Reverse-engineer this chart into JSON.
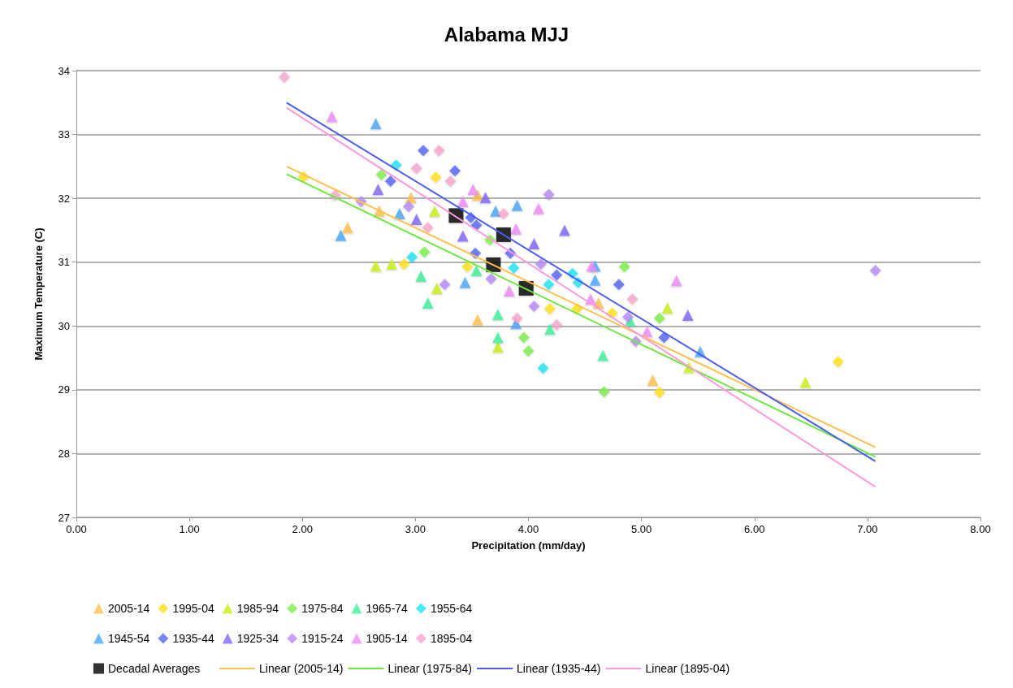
{
  "chart_data": {
    "type": "scatter",
    "title": "Alabama MJJ",
    "xlabel": "Precipitation (mm/day)",
    "ylabel": "Maximum Temperature (C)",
    "xlim": [
      0,
      8
    ],
    "xticks": [
      {
        "value": 0,
        "label": "0.00"
      },
      {
        "value": 1,
        "label": "1.00"
      },
      {
        "value": 2,
        "label": "2.00"
      },
      {
        "value": 3,
        "label": "3.00"
      },
      {
        "value": 4,
        "label": "4.00"
      },
      {
        "value": 5,
        "label": "5.00"
      },
      {
        "value": 6,
        "label": "6.00"
      },
      {
        "value": 7,
        "label": "7.00"
      },
      {
        "value": 8,
        "label": "8.00"
      }
    ],
    "ylim": [
      27,
      34
    ],
    "yticks": [
      27,
      28,
      29,
      30,
      31,
      32,
      33,
      34
    ],
    "grid": "y",
    "legend": "bottom",
    "series": [
      {
        "name": "2005-14",
        "color": "#ffc04f",
        "marker": "triangle",
        "x": [
          2.4,
          2.68,
          2.96,
          3.55,
          3.55,
          4.62,
          5.1
        ],
        "values": [
          31.54,
          31.8,
          32.01,
          32.05,
          30.1,
          30.36,
          29.15
        ]
      },
      {
        "name": "1995-04",
        "color": "#ffe11a",
        "marker": "diamond",
        "x": [
          2.01,
          2.9,
          3.18,
          3.46,
          4.19,
          4.43,
          4.74,
          5.16,
          6.74
        ],
        "values": [
          32.34,
          30.97,
          32.33,
          30.93,
          30.27,
          30.27,
          30.2,
          28.96,
          29.44
        ]
      },
      {
        "name": "1985-94",
        "color": "#c5f018",
        "marker": "triangle",
        "x": [
          2.65,
          2.79,
          3.17,
          3.19,
          3.73,
          5.23,
          5.42,
          6.45
        ],
        "values": [
          30.94,
          30.97,
          31.8,
          30.59,
          29.67,
          30.28,
          29.35,
          29.12
        ]
      },
      {
        "name": "1975-84",
        "color": "#7df04a",
        "marker": "diamond",
        "x": [
          2.7,
          3.08,
          3.66,
          3.96,
          4.0,
          4.67,
          4.85,
          5.16
        ],
        "values": [
          32.37,
          31.16,
          31.35,
          29.82,
          29.61,
          28.97,
          30.93,
          30.12
        ]
      },
      {
        "name": "1965-74",
        "color": "#3ef09a",
        "marker": "triangle",
        "x": [
          3.05,
          3.11,
          3.54,
          3.73,
          3.73,
          4.19,
          4.66,
          4.9
        ],
        "values": [
          30.78,
          30.36,
          30.87,
          30.18,
          29.82,
          29.95,
          29.54,
          30.08
        ]
      },
      {
        "name": "1955-64",
        "color": "#1ee6f5",
        "marker": "diamond",
        "x": [
          2.83,
          2.97,
          3.87,
          4.13,
          4.18,
          4.39,
          4.44
        ],
        "values": [
          32.52,
          31.08,
          30.91,
          29.34,
          30.65,
          30.82,
          30.68
        ]
      },
      {
        "name": "1945-54",
        "color": "#4aa7f7",
        "marker": "triangle",
        "x": [
          2.34,
          2.65,
          2.86,
          3.44,
          3.71,
          3.89,
          3.9,
          4.59,
          4.59,
          5.52
        ],
        "values": [
          31.42,
          33.17,
          31.76,
          30.68,
          31.8,
          30.04,
          31.89,
          30.72,
          30.94,
          29.6
        ]
      },
      {
        "name": "1935-44",
        "color": "#5566f5",
        "marker": "diamond",
        "x": [
          2.78,
          3.07,
          3.35,
          3.49,
          3.53,
          3.54,
          3.84,
          4.25,
          4.8,
          5.2
        ],
        "values": [
          32.27,
          32.75,
          32.43,
          31.7,
          31.14,
          31.58,
          31.14,
          30.8,
          30.65,
          29.82
        ]
      },
      {
        "name": "1925-34",
        "color": "#8266f5",
        "marker": "triangle",
        "x": [
          2.67,
          3.01,
          3.42,
          3.62,
          4.05,
          4.32,
          5.41
        ],
        "values": [
          32.14,
          31.67,
          31.41,
          32.01,
          31.29,
          31.5,
          30.17
        ]
      },
      {
        "name": "1915-24",
        "color": "#b88bf7",
        "marker": "diamond",
        "x": [
          2.52,
          2.94,
          3.26,
          3.67,
          4.05,
          4.11,
          4.18,
          4.88,
          4.95,
          7.07
        ],
        "values": [
          31.95,
          31.87,
          30.65,
          30.74,
          30.31,
          30.97,
          32.06,
          30.14,
          29.76,
          30.87
        ]
      },
      {
        "name": "1905-14",
        "color": "#ee8bf5",
        "marker": "triangle",
        "x": [
          2.26,
          3.42,
          3.51,
          3.83,
          3.89,
          4.09,
          4.55,
          4.56,
          5.05,
          5.31
        ],
        "values": [
          33.28,
          31.95,
          32.14,
          30.55,
          31.52,
          31.84,
          30.42,
          30.94,
          29.91,
          30.71
        ]
      },
      {
        "name": "1895-04",
        "color": "#f9a6d0",
        "marker": "diamond",
        "x": [
          1.84,
          2.29,
          3.01,
          3.11,
          3.21,
          3.31,
          3.78,
          3.9,
          4.25,
          4.92
        ],
        "values": [
          33.9,
          32.05,
          32.47,
          31.54,
          32.75,
          32.27,
          31.76,
          30.12,
          30.02,
          30.42
        ]
      },
      {
        "name": "Decadal Averages",
        "color": "#000000",
        "marker": "square",
        "x": [
          3.36,
          3.69,
          3.78,
          3.98
        ],
        "values": [
          31.73,
          30.96,
          31.43,
          30.59
        ]
      },
      {
        "name": "Linear (2005-14)",
        "type": "line",
        "color": "#ffbf4a",
        "marker": "none",
        "line_style": "solid",
        "x": [
          1.86,
          7.07
        ],
        "values": [
          32.5,
          28.1
        ]
      },
      {
        "name": "Linear (1975-84)",
        "type": "line",
        "color": "#6ee840",
        "marker": "none",
        "line_style": "solid",
        "x": [
          1.86,
          7.07
        ],
        "values": [
          32.38,
          27.95
        ]
      },
      {
        "name": "Linear (1935-44)",
        "type": "line",
        "color": "#4a5cf5",
        "marker": "none",
        "line_style": "solid",
        "x": [
          1.86,
          7.07
        ],
        "values": [
          33.5,
          27.88
        ]
      },
      {
        "name": "Linear (1895-04)",
        "type": "line",
        "color": "#ff99dd",
        "marker": "none",
        "line_style": "solid",
        "x": [
          1.86,
          7.07
        ],
        "values": [
          33.42,
          27.48
        ]
      }
    ]
  }
}
